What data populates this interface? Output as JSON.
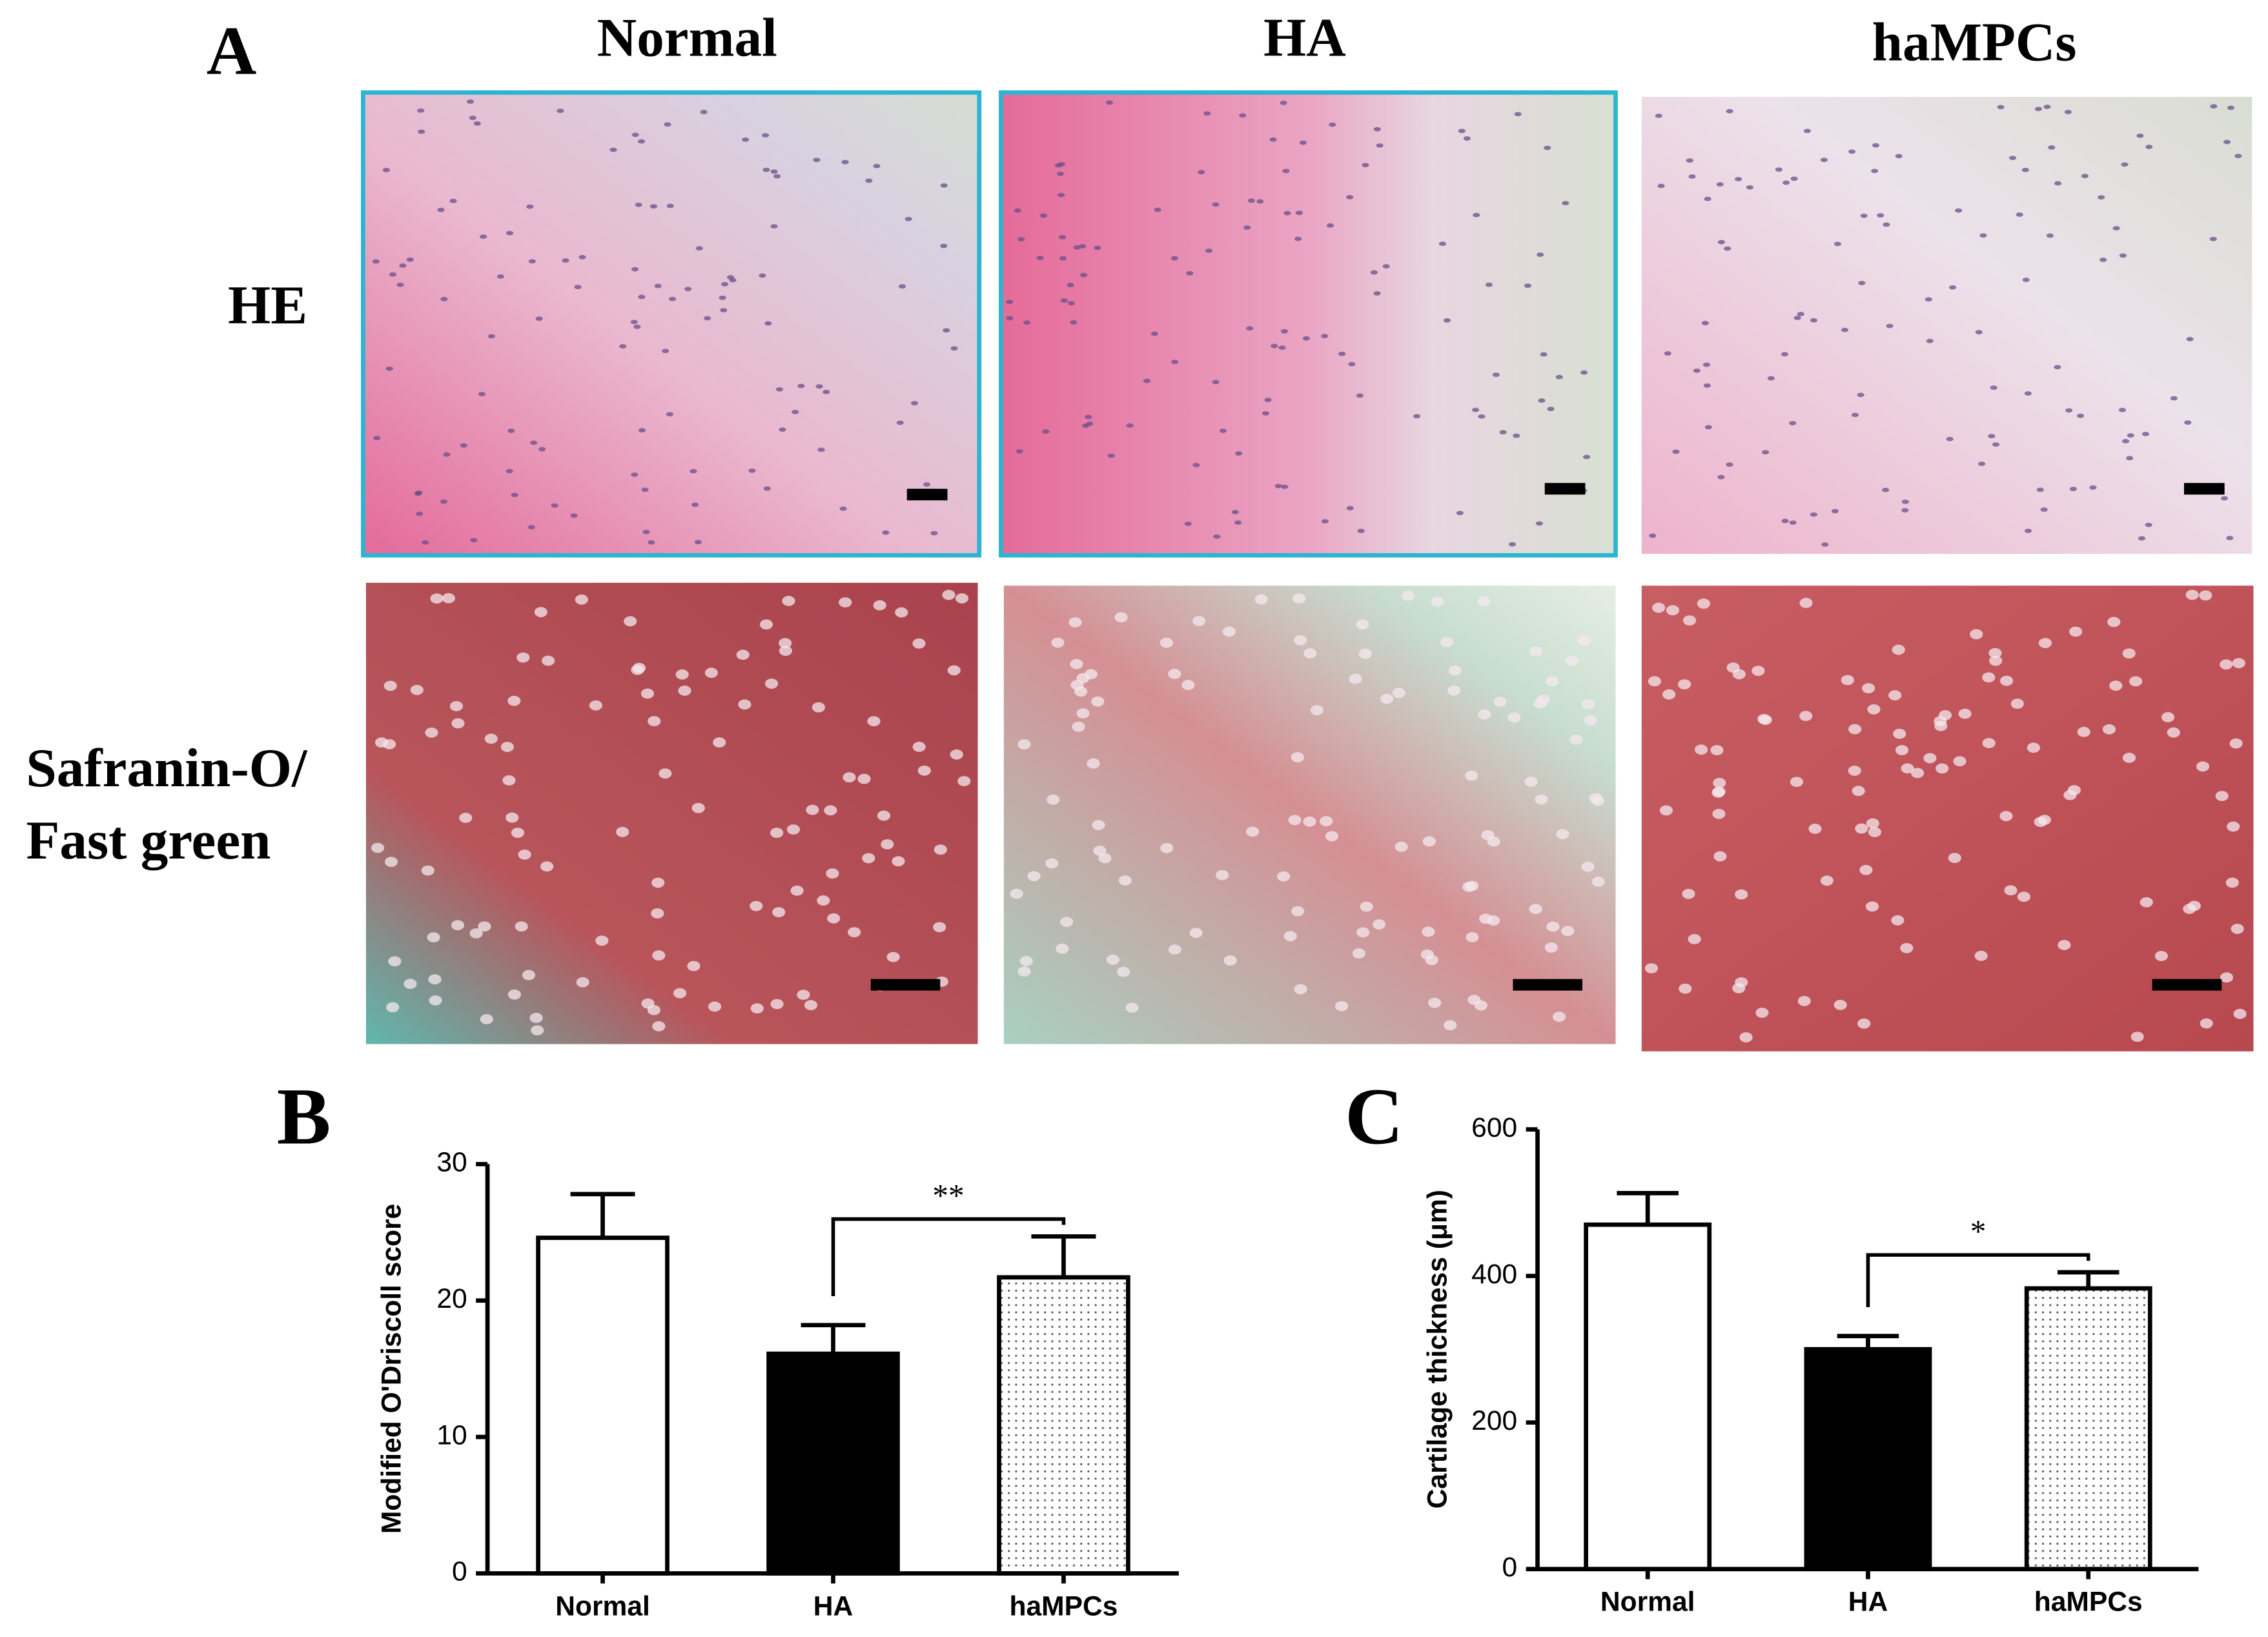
{
  "panel_a": {
    "label": "A",
    "columns": [
      "Normal",
      "HA",
      "haMPCs"
    ],
    "rows": [
      [
        "HE"
      ],
      [
        "Safranin-O/",
        "Fast green"
      ]
    ]
  },
  "chart_data": [
    {
      "type": "bar",
      "panel_label": "B",
      "y_label": "Modified O'Driscoll score",
      "categories": [
        "Normal",
        "HA",
        "haMPCs"
      ],
      "values": [
        24.6,
        16.1,
        21.7
      ],
      "errors": [
        3.2,
        2.1,
        3.0
      ],
      "colors": [
        "#ffffff",
        "#000000",
        "#ffffff"
      ],
      "patterns": [
        "none",
        "none",
        "dots"
      ],
      "ylim": [
        0,
        30
      ],
      "yticks": [
        0,
        10,
        20,
        30
      ],
      "significance": {
        "categories": [
          1,
          2
        ],
        "label": "**"
      }
    },
    {
      "type": "bar",
      "panel_label": "C",
      "y_label": "Cartilage thickness (μm)",
      "categories": [
        "Normal",
        "HA",
        "haMPCs"
      ],
      "values": [
        470,
        300,
        383
      ],
      "errors": [
        43,
        18,
        22
      ],
      "colors": [
        "#ffffff",
        "#000000",
        "#ffffff"
      ],
      "patterns": [
        "none",
        "none",
        "dots"
      ],
      "ylim": [
        0,
        600
      ],
      "yticks": [
        0,
        200,
        400,
        600
      ],
      "significance": {
        "categories": [
          1,
          2
        ],
        "label": "*"
      }
    }
  ]
}
